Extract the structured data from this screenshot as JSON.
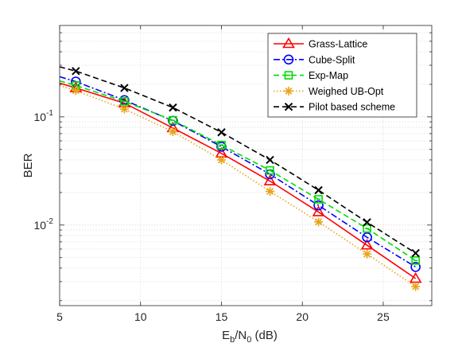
{
  "chart_data": {
    "type": "line",
    "title": "",
    "xlabel_main": "E",
    "xlabel_sub1": "b",
    "xlabel_mid": "/N",
    "xlabel_sub2": "0",
    "xlabel_tail": " (dB)",
    "ylabel": "BER",
    "xlim": [
      5,
      28
    ],
    "ylim": [
      0.0018,
      0.7
    ],
    "yscale": "log",
    "grid": true,
    "legend_position": "top-right",
    "x_ticks": [
      5,
      10,
      15,
      20,
      25
    ],
    "y_ticks": [
      {
        "value": 0.1,
        "base": "10",
        "exp": "-1"
      },
      {
        "value": 0.01,
        "base": "10",
        "exp": "-2"
      }
    ],
    "series": [
      {
        "name": "Grass-Lattice",
        "color": "#ff0000",
        "line_style": "solid",
        "marker": "triangle",
        "x": [
          5,
          6,
          9,
          12,
          15,
          18,
          21,
          24,
          27
        ],
        "y": [
          0.205,
          0.185,
          0.134,
          0.079,
          0.046,
          0.0255,
          0.0132,
          0.0065,
          0.0032
        ]
      },
      {
        "name": "Cube-Split",
        "color": "#0000ff",
        "line_style": "dashdot",
        "marker": "circle",
        "x": [
          5,
          6,
          9,
          12,
          15,
          18,
          21,
          24,
          27
        ],
        "y": [
          0.235,
          0.212,
          0.143,
          0.092,
          0.053,
          0.0295,
          0.0152,
          0.0077,
          0.0041
        ]
      },
      {
        "name": "Exp-Map",
        "color": "#00dd00",
        "line_style": "dashed",
        "marker": "square",
        "x": [
          5,
          6,
          9,
          12,
          15,
          18,
          21,
          24,
          27
        ],
        "y": [
          0.215,
          0.195,
          0.139,
          0.093,
          0.055,
          0.032,
          0.0173,
          0.0093,
          0.0047
        ]
      },
      {
        "name": "Weighed UB-Opt",
        "color": "#e8a317",
        "line_style": "dotted",
        "marker": "asterisk",
        "x": [
          5,
          6,
          9,
          12,
          15,
          18,
          21,
          24,
          27
        ],
        "y": [
          0.195,
          0.175,
          0.118,
          0.073,
          0.04,
          0.0205,
          0.0107,
          0.0054,
          0.0027
        ]
      },
      {
        "name": "Pilot based scheme",
        "color": "#000000",
        "line_style": "dashed",
        "marker": "x",
        "x": [
          5,
          6,
          9,
          12,
          15,
          18,
          21,
          24,
          27
        ],
        "y": [
          0.29,
          0.265,
          0.185,
          0.122,
          0.072,
          0.04,
          0.021,
          0.0106,
          0.0055
        ]
      }
    ]
  }
}
